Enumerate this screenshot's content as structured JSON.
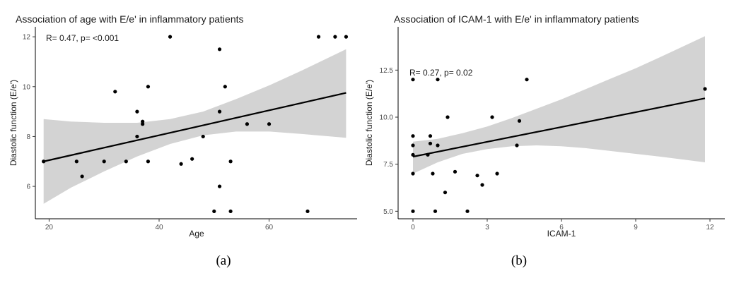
{
  "chart_data": [
    {
      "type": "scatter",
      "panel_label": "(a)",
      "title": "Association of age with E/e' in inflammatory patients",
      "annotation": "R= 0.47, p= <0.001",
      "xlabel": "Age",
      "ylabel": "Diastolic function (E/e')",
      "xlim": [
        17.5,
        76
      ],
      "ylim": [
        4.7,
        12.4
      ],
      "xticks": [
        20,
        40,
        60
      ],
      "yticks": [
        6,
        8,
        10,
        12
      ],
      "grid": false,
      "points": [
        {
          "x": 19,
          "y": 7.0
        },
        {
          "x": 25,
          "y": 7.0
        },
        {
          "x": 26,
          "y": 6.4
        },
        {
          "x": 30,
          "y": 7.0
        },
        {
          "x": 32,
          "y": 9.8
        },
        {
          "x": 34,
          "y": 7.0
        },
        {
          "x": 36,
          "y": 9.0
        },
        {
          "x": 36,
          "y": 8.0
        },
        {
          "x": 37,
          "y": 8.5
        },
        {
          "x": 37,
          "y": 8.6
        },
        {
          "x": 38,
          "y": 10.0
        },
        {
          "x": 38,
          "y": 7.0
        },
        {
          "x": 42,
          "y": 12.0
        },
        {
          "x": 44,
          "y": 6.9
        },
        {
          "x": 46,
          "y": 7.1
        },
        {
          "x": 48,
          "y": 8.0
        },
        {
          "x": 50,
          "y": 5.0
        },
        {
          "x": 51,
          "y": 11.5
        },
        {
          "x": 51,
          "y": 9.0
        },
        {
          "x": 51,
          "y": 6.0
        },
        {
          "x": 52,
          "y": 10.0
        },
        {
          "x": 53,
          "y": 7.0
        },
        {
          "x": 53,
          "y": 5.0
        },
        {
          "x": 56,
          "y": 8.5
        },
        {
          "x": 60,
          "y": 8.5
        },
        {
          "x": 67,
          "y": 5.0
        },
        {
          "x": 69,
          "y": 12.0
        },
        {
          "x": 72,
          "y": 12.0
        },
        {
          "x": 74,
          "y": 12.0
        }
      ],
      "fit": {
        "x": [
          19,
          74
        ],
        "y": [
          7.0,
          9.75
        ]
      },
      "confidence_band": {
        "x": [
          19,
          24,
          30,
          36,
          42,
          48,
          54,
          60,
          66,
          74
        ],
        "upper": [
          8.7,
          8.6,
          8.55,
          8.55,
          8.7,
          9.0,
          9.5,
          10.05,
          10.65,
          11.5
        ],
        "lower": [
          5.3,
          5.95,
          6.6,
          7.2,
          7.7,
          8.05,
          8.2,
          8.2,
          8.1,
          7.95
        ]
      },
      "colors": {
        "points": "#000000",
        "fit": "#000000",
        "band": "#d3d3d3"
      }
    },
    {
      "type": "scatter",
      "panel_label": "(b)",
      "title": "Association of ICAM-1 with E/e' in inflammatory patients",
      "annotation": "R= 0.27, p= 0.02",
      "xlabel": "ICAM-1",
      "ylabel": "Diastolic function (E/e')",
      "xlim": [
        -0.6,
        12.6
      ],
      "ylim": [
        4.6,
        14.8
      ],
      "xticks": [
        0,
        3,
        6,
        9,
        12
      ],
      "yticks": [
        5.0,
        7.5,
        10.0,
        12.5
      ],
      "ytick_labels": [
        "5.0",
        "7.5",
        "10.0",
        "12.5"
      ],
      "grid": false,
      "points": [
        {
          "x": 0.0,
          "y": 12.0
        },
        {
          "x": 0.0,
          "y": 9.0
        },
        {
          "x": 0.0,
          "y": 8.5
        },
        {
          "x": 0.0,
          "y": 8.0
        },
        {
          "x": 0.0,
          "y": 7.0
        },
        {
          "x": 0.0,
          "y": 5.0
        },
        {
          "x": 0.6,
          "y": 8.0
        },
        {
          "x": 0.7,
          "y": 9.0
        },
        {
          "x": 0.7,
          "y": 8.6
        },
        {
          "x": 0.8,
          "y": 7.0
        },
        {
          "x": 0.9,
          "y": 5.0
        },
        {
          "x": 1.0,
          "y": 12.0
        },
        {
          "x": 1.0,
          "y": 8.5
        },
        {
          "x": 1.3,
          "y": 6.0
        },
        {
          "x": 1.4,
          "y": 10.0
        },
        {
          "x": 1.7,
          "y": 7.1
        },
        {
          "x": 2.2,
          "y": 5.0
        },
        {
          "x": 2.6,
          "y": 6.9
        },
        {
          "x": 2.8,
          "y": 6.4
        },
        {
          "x": 3.2,
          "y": 10.0
        },
        {
          "x": 3.4,
          "y": 7.0
        },
        {
          "x": 4.2,
          "y": 8.5
        },
        {
          "x": 4.3,
          "y": 9.8
        },
        {
          "x": 4.6,
          "y": 12.0
        },
        {
          "x": 11.8,
          "y": 11.5
        }
      ],
      "fit": {
        "x": [
          0,
          11.8
        ],
        "y": [
          7.9,
          11.0
        ]
      },
      "confidence_band": {
        "x": [
          0,
          1,
          2,
          3,
          4,
          5,
          6,
          7,
          8,
          9,
          10,
          11.8
        ],
        "upper": [
          8.7,
          8.85,
          9.15,
          9.5,
          9.95,
          10.45,
          10.95,
          11.5,
          12.05,
          12.6,
          13.2,
          14.3
        ],
        "lower": [
          7.0,
          7.6,
          8.05,
          8.3,
          8.45,
          8.5,
          8.45,
          8.35,
          8.2,
          8.05,
          7.9,
          7.6
        ]
      },
      "colors": {
        "points": "#000000",
        "fit": "#000000",
        "band": "#d3d3d3"
      }
    }
  ]
}
